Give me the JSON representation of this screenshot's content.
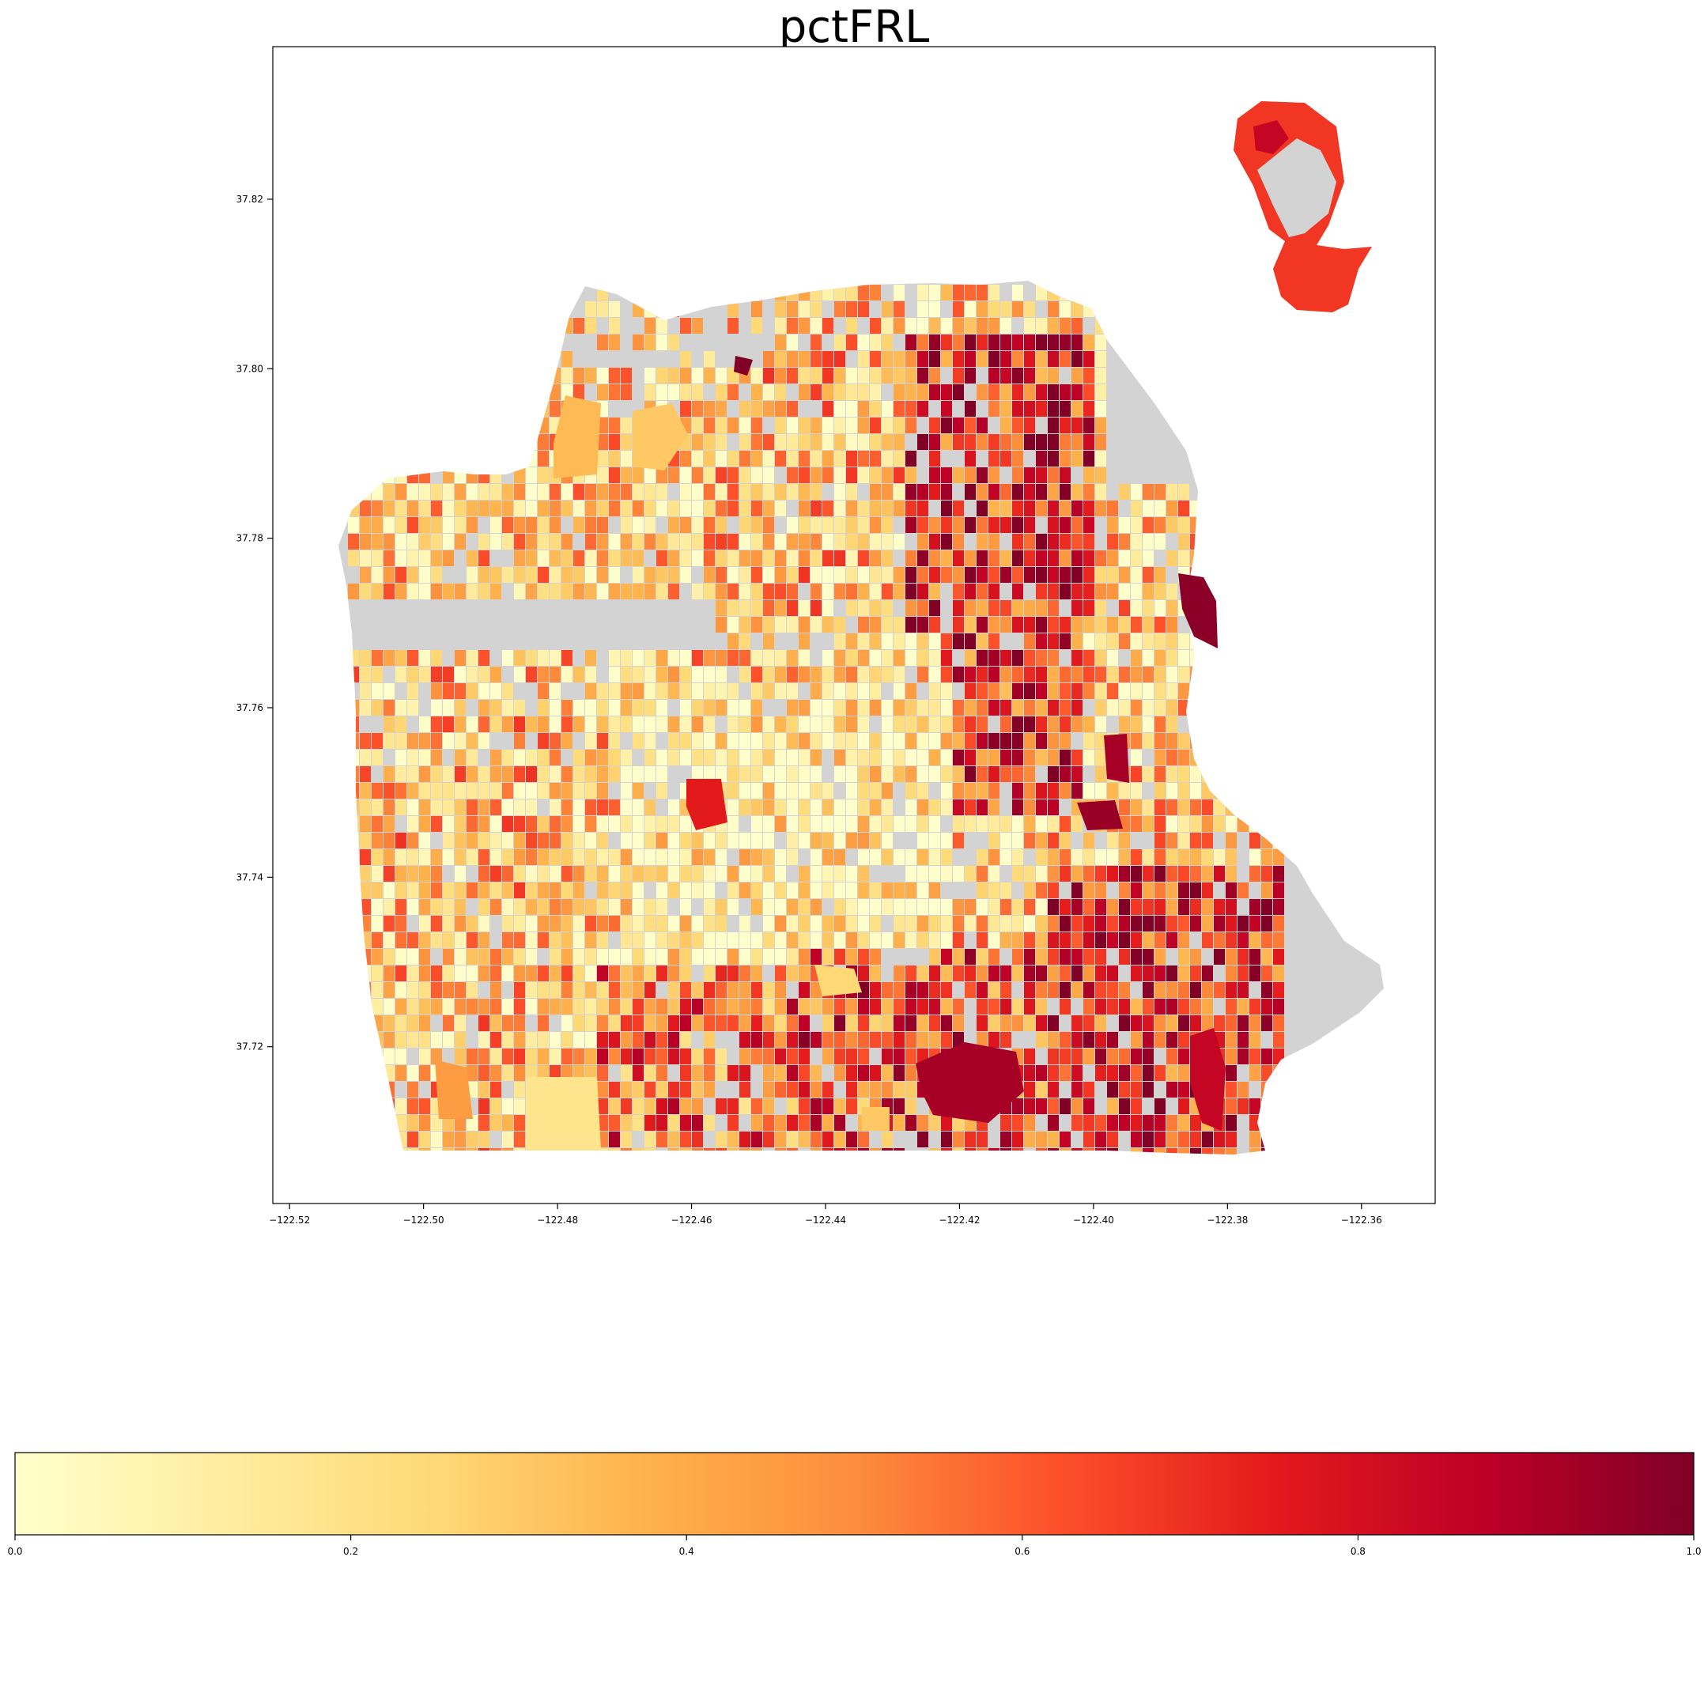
{
  "title": "pctFRL",
  "chart_data": {
    "type": "choropleth map",
    "title": "pctFRL",
    "x_ticks": [
      "−122.52",
      "−122.50",
      "−122.48",
      "−122.46",
      "−122.44",
      "−122.42",
      "−122.40",
      "−122.38",
      "−122.36"
    ],
    "y_ticks": [
      "37.82",
      "37.80",
      "37.78",
      "37.76",
      "37.74",
      "37.72"
    ],
    "x_range": [
      -122.5225,
      -122.349
    ],
    "y_range": [
      37.7015,
      37.838
    ],
    "missing_color": "#d3d3d3",
    "colormap": "YlOrRd",
    "colorbar": {
      "orientation": "horizontal",
      "range": [
        0.0,
        1.0
      ],
      "ticks": [
        "0.0",
        "0.2",
        "0.4",
        "0.6",
        "0.8",
        "1.0"
      ]
    },
    "colormap_stops": [
      "#ffffcc",
      "#ffeda0",
      "#fed976",
      "#feb24c",
      "#fd8d3c",
      "#fc4e2a",
      "#e31a1c",
      "#bd0026",
      "#800026"
    ],
    "patterns": {
      "north_west": "low-moderate values (0.1–0.45) in a fine street-block grid",
      "north_east": "high values (0.6–1.0) concentrated in the Tenderloin / Chinatown area",
      "center": "low values (0.0–0.2) in the western and central hills",
      "south_east": "high values (0.6–1.0) in the Bayview and Excelsior area"
    }
  }
}
